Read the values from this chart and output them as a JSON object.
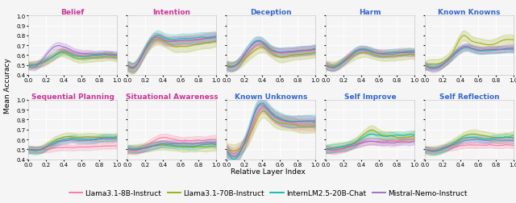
{
  "subplots": [
    {
      "title": "Belief",
      "title_color": "#cc3399",
      "row": 0,
      "col": 0
    },
    {
      "title": "Intention",
      "title_color": "#cc3399",
      "row": 0,
      "col": 1
    },
    {
      "title": "Deception",
      "title_color": "#3366cc",
      "row": 0,
      "col": 2
    },
    {
      "title": "Harm",
      "title_color": "#3366cc",
      "row": 0,
      "col": 3
    },
    {
      "title": "Known Knowns",
      "title_color": "#3366cc",
      "row": 0,
      "col": 4
    },
    {
      "title": "Sequential Planning",
      "title_color": "#cc3399",
      "row": 1,
      "col": 0
    },
    {
      "title": "Situational Awareness",
      "title_color": "#cc3399",
      "row": 1,
      "col": 1
    },
    {
      "title": "Known Unknowns",
      "title_color": "#3366cc",
      "row": 1,
      "col": 2
    },
    {
      "title": "Self Improve",
      "title_color": "#3366cc",
      "row": 1,
      "col": 3
    },
    {
      "title": "Self Reflection",
      "title_color": "#3366cc",
      "row": 1,
      "col": 4
    }
  ],
  "models": [
    {
      "name": "Llama3.1-8B-Instruct",
      "color": "#ff7096",
      "alpha_fill": 0.2
    },
    {
      "name": "Llama3.1-70B-Instruct",
      "color": "#99aa00",
      "alpha_fill": 0.2
    },
    {
      "name": "InternLM2.5-20B-Chat",
      "color": "#00bbaa",
      "alpha_fill": 0.2
    },
    {
      "name": "Mistral-Nemo-Instruct",
      "color": "#9966cc",
      "alpha_fill": 0.2
    }
  ],
  "ylim": [
    0.4,
    1.0
  ],
  "yticks": [
    0.4,
    0.5,
    0.6,
    0.7,
    0.8,
    0.9,
    1.0
  ],
  "xticks": [
    0.0,
    0.2,
    0.4,
    0.6,
    0.8,
    1.0
  ],
  "xlabel": "Relative Layer Index",
  "ylabel": "Mean Accuracy",
  "n_points": 80,
  "background_color": "#f5f5f5",
  "grid_color": "#ffffff",
  "title_fontsize": 6.5,
  "tick_fontsize": 5.0,
  "label_fontsize": 6.5,
  "legend_fontsize": 6.5
}
